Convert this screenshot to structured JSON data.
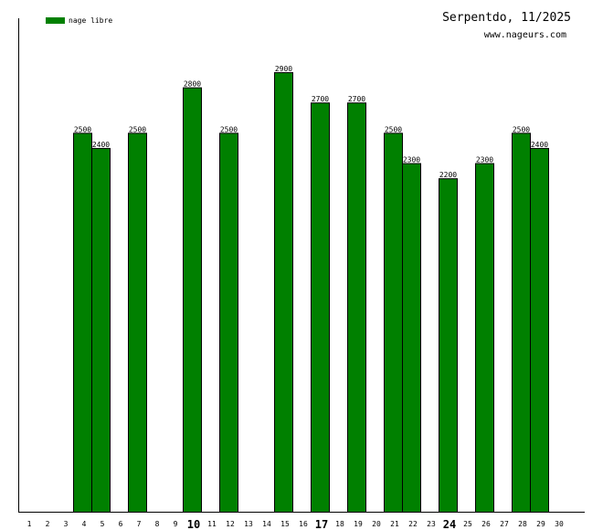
{
  "chart_data": {
    "type": "bar",
    "title": "Serpentdo, 11/2025",
    "subtitle": "www.nageurs.com",
    "legend": {
      "position": "top-left",
      "entries": [
        {
          "name": "nage libre",
          "color": "#008000"
        }
      ]
    },
    "x": [
      1,
      2,
      3,
      4,
      5,
      6,
      7,
      8,
      9,
      10,
      11,
      12,
      13,
      14,
      15,
      16,
      17,
      18,
      19,
      20,
      21,
      22,
      23,
      24,
      25,
      26,
      27,
      28,
      29,
      30
    ],
    "bold_ticks": [
      10,
      17,
      24
    ],
    "series": [
      {
        "name": "nage libre",
        "color": "#008000",
        "points": [
          {
            "x": 4,
            "y": 2500
          },
          {
            "x": 5,
            "y": 2400
          },
          {
            "x": 7,
            "y": 2500
          },
          {
            "x": 10,
            "y": 2800
          },
          {
            "x": 12,
            "y": 2500
          },
          {
            "x": 15,
            "y": 2900
          },
          {
            "x": 17,
            "y": 2700
          },
          {
            "x": 19,
            "y": 2700
          },
          {
            "x": 21,
            "y": 2500
          },
          {
            "x": 22,
            "y": 2300
          },
          {
            "x": 24,
            "y": 2200
          },
          {
            "x": 26,
            "y": 2300
          },
          {
            "x": 28,
            "y": 2500
          },
          {
            "x": 29,
            "y": 2400
          }
        ]
      }
    ],
    "grid": false
  }
}
